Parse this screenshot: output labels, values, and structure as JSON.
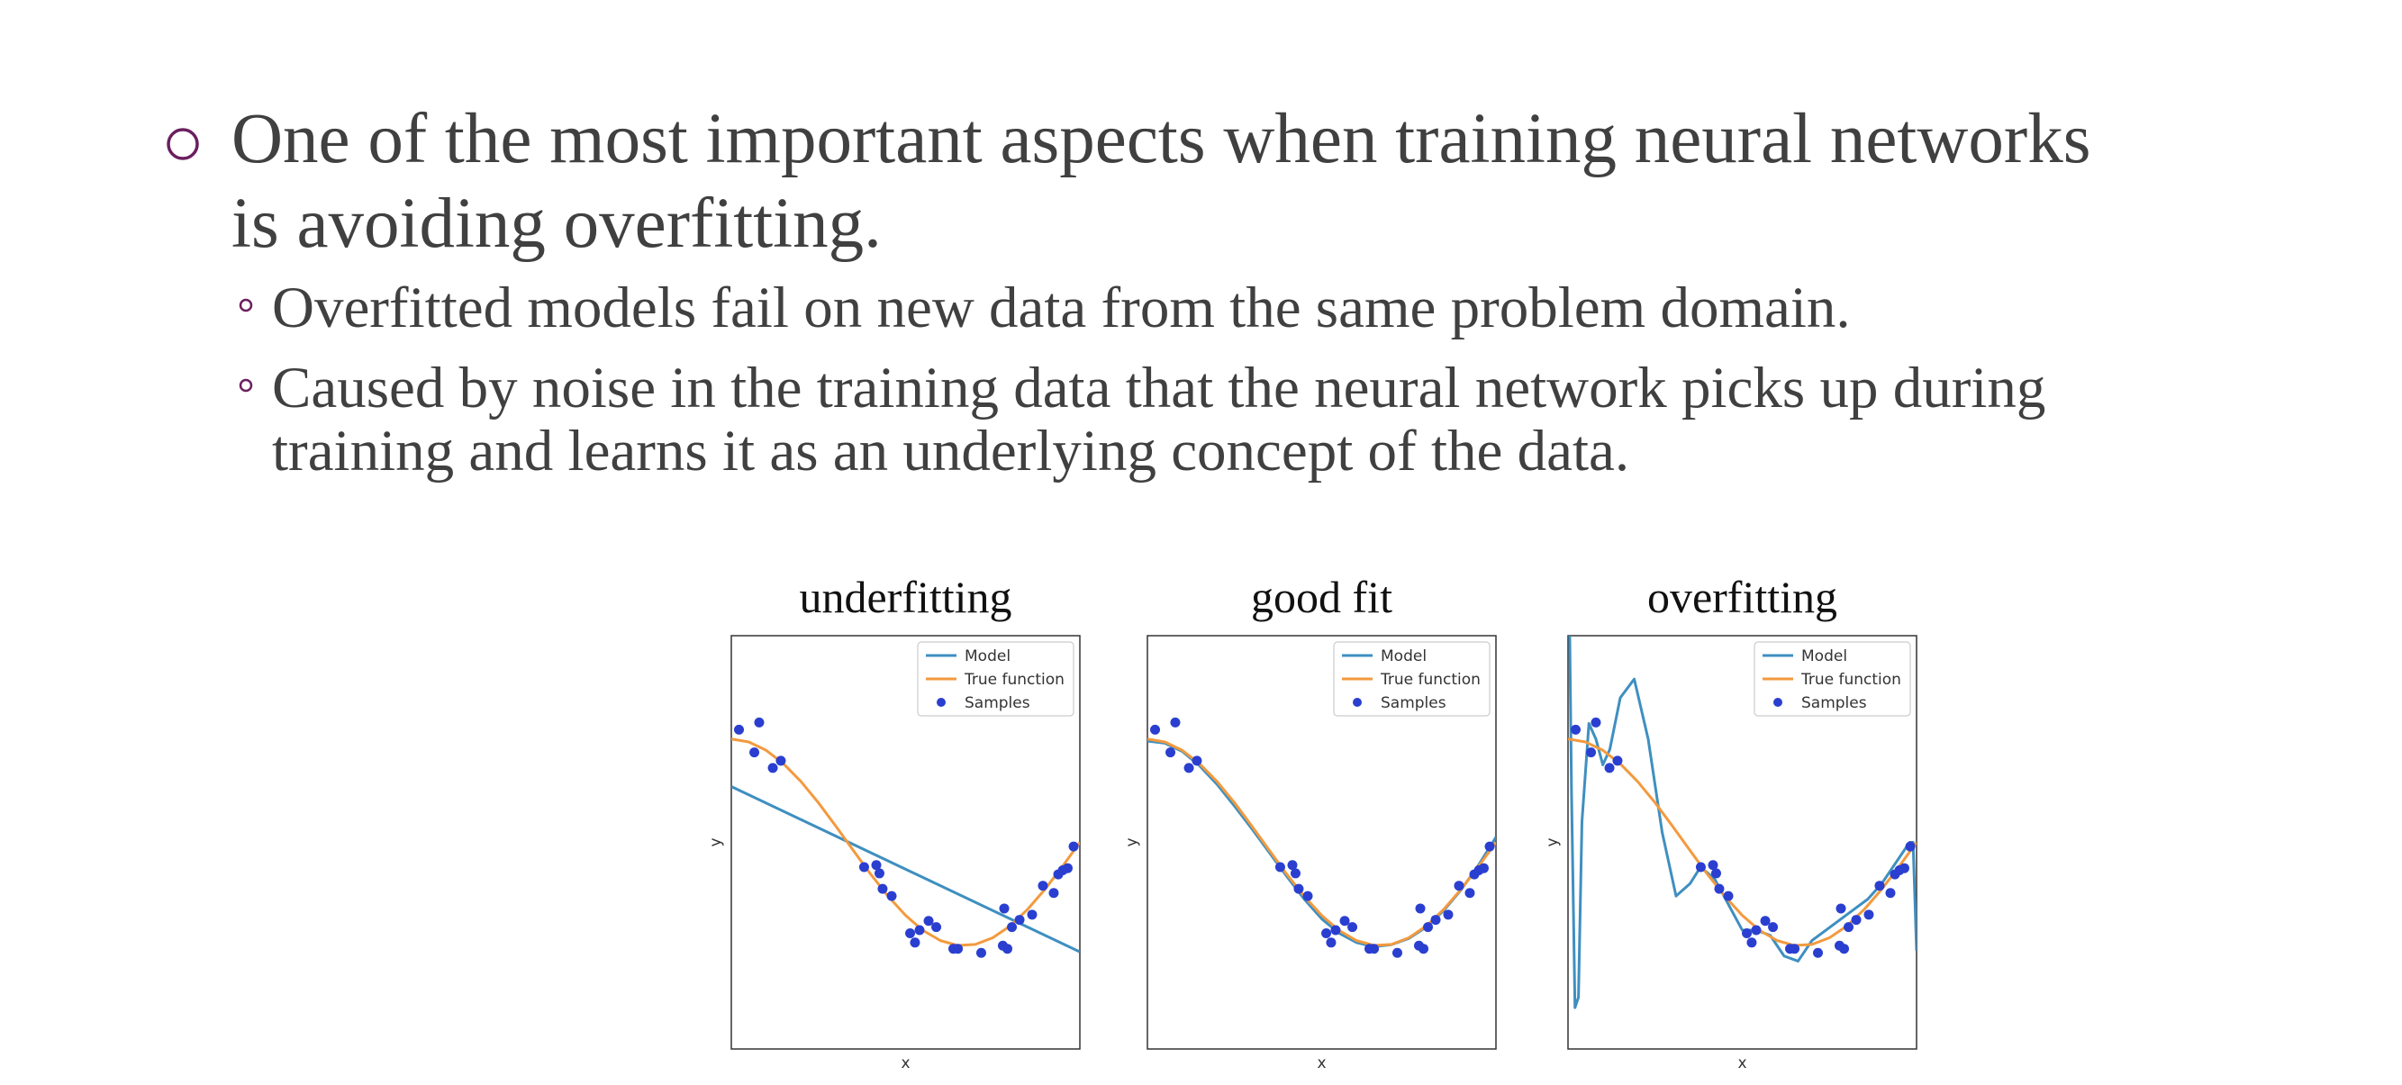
{
  "slide": {
    "bullets": [
      {
        "lines": [
          "One of the most important aspects when training neural networks",
          "is avoiding overfitting."
        ],
        "sub_bullets": [
          {
            "lines": [
              "Overfitted models fail on new data from the same problem domain."
            ]
          },
          {
            "lines": [
              "Caused by noise in the training data that the neural network picks up during",
              "training and learns it as an underlying concept of the data."
            ]
          }
        ]
      }
    ]
  },
  "chart_data": [
    {
      "type": "line",
      "title": "underfitting",
      "xlabel": "x",
      "ylabel": "y",
      "xlim": [
        0,
        1
      ],
      "ylim": [
        -2,
        2
      ],
      "legend": "upper right",
      "series": [
        {
          "name": "Model",
          "color": "#3f8fc0",
          "x": [
            0,
            1
          ],
          "values": [
            0.54,
            -1.06
          ]
        },
        {
          "name": "True function",
          "color": "#f39a3e",
          "x": [
            0,
            0.05,
            0.1,
            0.15,
            0.2,
            0.25,
            0.3,
            0.35,
            0.4,
            0.45,
            0.5,
            0.55,
            0.6,
            0.65,
            0.7,
            0.75,
            0.8,
            0.85,
            0.9,
            0.95,
            1
          ],
          "values": [
            1,
            0.972,
            0.891,
            0.76,
            0.588,
            0.383,
            0.156,
            -0.078,
            -0.309,
            -0.522,
            -0.707,
            -0.853,
            -0.951,
            -0.998,
            -0.988,
            -0.924,
            -0.809,
            -0.649,
            -0.454,
            -0.233,
            0
          ]
        },
        {
          "name": "Samples",
          "color": "#2a3fd0",
          "marker": "point",
          "x": [
            0.022,
            0.08,
            0.066,
            0.119,
            0.142,
            0.381,
            0.416,
            0.425,
            0.434,
            0.46,
            0.513,
            0.527,
            0.54,
            0.566,
            0.588,
            0.637,
            0.65,
            0.717,
            0.779,
            0.792,
            0.783,
            0.805,
            0.827,
            0.863,
            0.894,
            0.925,
            0.938,
            0.951,
            0.965,
            0.982
          ],
          "values": [
            1.09,
            1.16,
            0.87,
            0.72,
            0.79,
            -0.24,
            -0.22,
            -0.3,
            -0.45,
            -0.52,
            -0.88,
            -0.97,
            -0.85,
            -0.76,
            -0.82,
            -1.03,
            -1.03,
            -1.07,
            -1,
            -1.03,
            -0.64,
            -0.82,
            -0.75,
            -0.7,
            -0.42,
            -0.49,
            -0.31,
            -0.27,
            -0.25,
            -0.04
          ]
        }
      ]
    },
    {
      "type": "line",
      "title": "good fit",
      "xlabel": "x",
      "ylabel": "y",
      "xlim": [
        0,
        1
      ],
      "ylim": [
        -2,
        2
      ],
      "legend": "upper right",
      "series": [
        {
          "name": "Model",
          "color": "#3f8fc0",
          "x": [
            0,
            0.05,
            0.1,
            0.15,
            0.2,
            0.25,
            0.3,
            0.35,
            0.4,
            0.45,
            0.5,
            0.55,
            0.6,
            0.65,
            0.7,
            0.75,
            0.8,
            0.85,
            0.9,
            0.95,
            1
          ],
          "values": [
            0.98,
            0.96,
            0.88,
            0.74,
            0.56,
            0.35,
            0.13,
            -0.1,
            -0.33,
            -0.55,
            -0.74,
            -0.88,
            -0.97,
            -1.01,
            -0.99,
            -0.93,
            -0.82,
            -0.66,
            -0.46,
            -0.22,
            0.05
          ]
        },
        {
          "name": "True function",
          "color": "#f39a3e",
          "x": [
            0,
            0.05,
            0.1,
            0.15,
            0.2,
            0.25,
            0.3,
            0.35,
            0.4,
            0.45,
            0.5,
            0.55,
            0.6,
            0.65,
            0.7,
            0.75,
            0.8,
            0.85,
            0.9,
            0.95,
            1
          ],
          "values": [
            1,
            0.972,
            0.891,
            0.76,
            0.588,
            0.383,
            0.156,
            -0.078,
            -0.309,
            -0.522,
            -0.707,
            -0.853,
            -0.951,
            -0.998,
            -0.988,
            -0.924,
            -0.809,
            -0.649,
            -0.454,
            -0.233,
            0
          ]
        },
        {
          "name": "Samples",
          "color": "#2a3fd0",
          "marker": "point",
          "x": [
            0.022,
            0.08,
            0.066,
            0.119,
            0.142,
            0.381,
            0.416,
            0.425,
            0.434,
            0.46,
            0.513,
            0.527,
            0.54,
            0.566,
            0.588,
            0.637,
            0.65,
            0.717,
            0.779,
            0.792,
            0.783,
            0.805,
            0.827,
            0.863,
            0.894,
            0.925,
            0.938,
            0.951,
            0.965,
            0.982
          ],
          "values": [
            1.09,
            1.16,
            0.87,
            0.72,
            0.79,
            -0.24,
            -0.22,
            -0.3,
            -0.45,
            -0.52,
            -0.88,
            -0.97,
            -0.85,
            -0.76,
            -0.82,
            -1.03,
            -1.03,
            -1.07,
            -1,
            -1.03,
            -0.64,
            -0.82,
            -0.75,
            -0.7,
            -0.42,
            -0.49,
            -0.31,
            -0.27,
            -0.25,
            -0.04
          ]
        }
      ]
    },
    {
      "type": "line",
      "title": "overfitting",
      "xlabel": "x",
      "ylabel": "y",
      "xlim": [
        0,
        1
      ],
      "ylim": [
        -2,
        2
      ],
      "legend": "upper right",
      "series": [
        {
          "name": "Model",
          "color": "#3f8fc0",
          "x": [
            0,
            0.01,
            0.02,
            0.03,
            0.04,
            0.06,
            0.08,
            0.1,
            0.12,
            0.15,
            0.19,
            0.23,
            0.27,
            0.31,
            0.35,
            0.38,
            0.42,
            0.46,
            0.5,
            0.54,
            0.58,
            0.62,
            0.66,
            0.7,
            0.74,
            0.78,
            0.82,
            0.86,
            0.9,
            0.94,
            0.98,
            0.99,
            1
          ],
          "values": [
            3.5,
            0.5,
            -1.6,
            -1.5,
            0.2,
            1.15,
            1,
            0.75,
            0.9,
            1.4,
            1.58,
            1,
            0.1,
            -0.52,
            -0.4,
            -0.24,
            -0.35,
            -0.6,
            -0.85,
            -0.85,
            -0.9,
            -1.1,
            -1.15,
            -0.95,
            -0.85,
            -0.75,
            -0.65,
            -0.55,
            -0.4,
            -0.2,
            0,
            0,
            -1.05
          ]
        },
        {
          "name": "True function",
          "color": "#f39a3e",
          "x": [
            0,
            0.05,
            0.1,
            0.15,
            0.2,
            0.25,
            0.3,
            0.35,
            0.4,
            0.45,
            0.5,
            0.55,
            0.6,
            0.65,
            0.7,
            0.75,
            0.8,
            0.85,
            0.9,
            0.95,
            1
          ],
          "values": [
            1,
            0.972,
            0.891,
            0.76,
            0.588,
            0.383,
            0.156,
            -0.078,
            -0.309,
            -0.522,
            -0.707,
            -0.853,
            -0.951,
            -0.998,
            -0.988,
            -0.924,
            -0.809,
            -0.649,
            -0.454,
            -0.233,
            0
          ]
        },
        {
          "name": "Samples",
          "color": "#2a3fd0",
          "marker": "point",
          "x": [
            0.022,
            0.08,
            0.066,
            0.119,
            0.142,
            0.381,
            0.416,
            0.425,
            0.434,
            0.46,
            0.513,
            0.527,
            0.54,
            0.566,
            0.588,
            0.637,
            0.65,
            0.717,
            0.779,
            0.792,
            0.783,
            0.805,
            0.827,
            0.863,
            0.894,
            0.925,
            0.938,
            0.951,
            0.965,
            0.982
          ],
          "values": [
            1.09,
            1.16,
            0.87,
            0.72,
            0.79,
            -0.24,
            -0.22,
            -0.3,
            -0.45,
            -0.52,
            -0.88,
            -0.97,
            -0.85,
            -0.76,
            -0.82,
            -1.03,
            -1.03,
            -1.07,
            -1,
            -1.03,
            -0.64,
            -0.82,
            -0.75,
            -0.7,
            -0.42,
            -0.49,
            -0.31,
            -0.27,
            -0.25,
            -0.04
          ]
        }
      ]
    }
  ]
}
